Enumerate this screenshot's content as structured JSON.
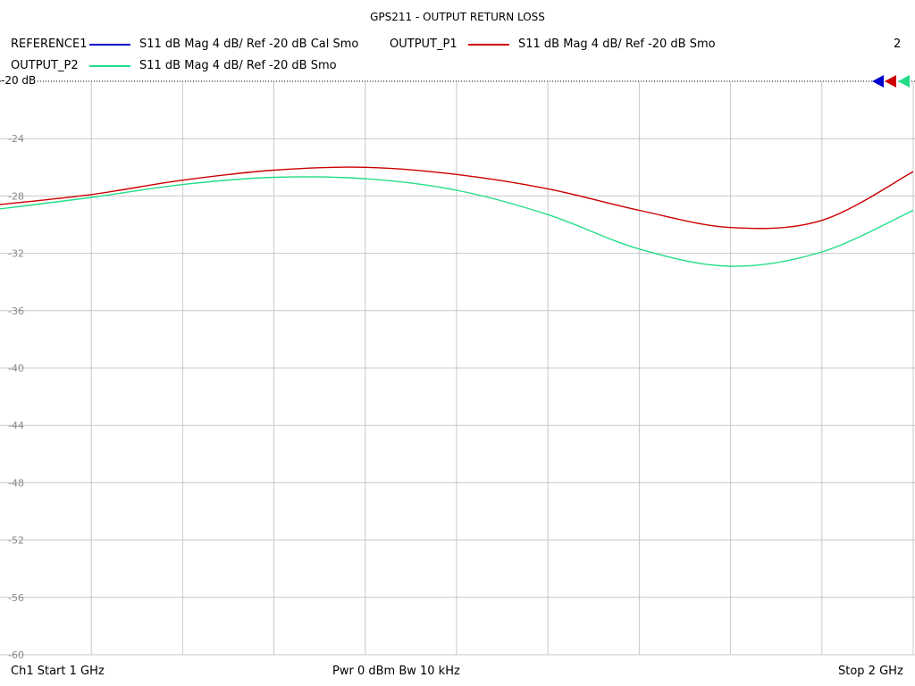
{
  "title": "GPS211 - OUTPUT RETURN LOSS",
  "channel_number": "2",
  "ref_label": "-20 dB",
  "legend": [
    {
      "name": "REFERENCE1",
      "desc": "S11  dB Mag  4 dB/ Ref -20 dB  Cal Smo",
      "color": "#0000cc"
    },
    {
      "name": "OUTPUT_P1",
      "desc": "S11  dB Mag  4 dB/ Ref -20 dB  Smo",
      "color": "#cc0000"
    },
    {
      "name": "OUTPUT_P2",
      "desc": "S11  dB Mag  4 dB/ Ref -20 dB  Smo",
      "color": "#22dd88"
    }
  ],
  "footer": {
    "start": "Ch1  Start  1 GHz",
    "power": "Pwr  0 dBm  Bw  10 kHz",
    "stop": "Stop  2 GHz"
  },
  "chart_data": {
    "type": "line",
    "title": "GPS211 - OUTPUT RETURN LOSS",
    "xlabel": "",
    "ylabel": "",
    "xlim": [
      1.0,
      2.0
    ],
    "ylim": [
      -60,
      -20
    ],
    "yticks": [
      -60,
      -56,
      -52,
      -48,
      -44,
      -40,
      -36,
      -32,
      -28,
      -24,
      -20
    ],
    "ytick_labels": [
      "-60",
      "-56",
      "-52",
      "-48",
      "-44",
      "-40",
      "-36",
      "-32",
      "-28",
      "-24",
      "-20"
    ],
    "grid": true,
    "x": [
      1.0,
      1.1,
      1.2,
      1.3,
      1.4,
      1.5,
      1.6,
      1.7,
      1.8,
      1.9,
      2.0
    ],
    "series": [
      {
        "name": "OUTPUT_P1",
        "color": "#cc0000",
        "values": [
          -28.6,
          -27.9,
          -26.9,
          -26.2,
          -26.0,
          -26.5,
          -27.5,
          -29.0,
          -30.2,
          -29.7,
          -26.3
        ]
      },
      {
        "name": "OUTPUT_P2",
        "color": "#22dd88",
        "values": [
          -28.9,
          -28.1,
          -27.2,
          -26.7,
          -26.8,
          -27.6,
          -29.3,
          -31.7,
          -32.9,
          -31.9,
          -29.0
        ]
      }
    ]
  }
}
